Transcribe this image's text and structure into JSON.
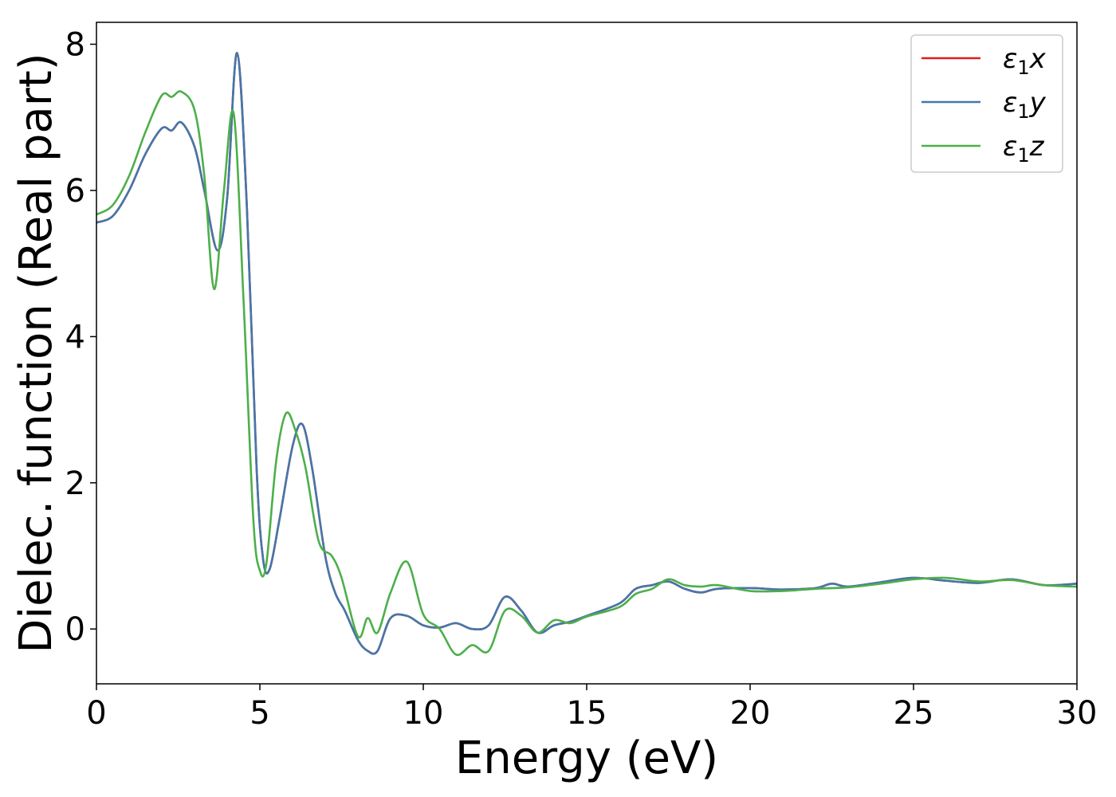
{
  "chart_data": {
    "type": "line",
    "title": "",
    "xlabel": "Energy (eV)",
    "ylabel": "Dielec. function (Real part)",
    "xlim": [
      0,
      30
    ],
    "ylim": [
      -0.75,
      8.3
    ],
    "xticks": [
      0,
      5,
      10,
      15,
      20,
      25,
      30
    ],
    "yticks": [
      0,
      2,
      4,
      6,
      8
    ],
    "grid": false,
    "legend_position": "top-right",
    "series": [
      {
        "name": "ε1x",
        "legend_symbol": "ε",
        "legend_sub": "1",
        "legend_var": "x",
        "color": "#e41a1c",
        "x": [
          0,
          0.5,
          1,
          1.5,
          2,
          2.3,
          2.6,
          3,
          3.3,
          3.7,
          4,
          4.3,
          4.6,
          4.9,
          5.1,
          5.3,
          5.6,
          6,
          6.3,
          6.6,
          7,
          7.3,
          7.6,
          8,
          8.3,
          8.6,
          9,
          9.5,
          10,
          10.5,
          11,
          11.5,
          12,
          12.5,
          13,
          13.5,
          14,
          14.5,
          15,
          16,
          16.5,
          17,
          17.5,
          18,
          18.5,
          19,
          20,
          21,
          22,
          22.5,
          23,
          24,
          25,
          26,
          27,
          28,
          29,
          30
        ],
        "values": [
          5.56,
          5.65,
          6.0,
          6.5,
          6.85,
          6.82,
          6.93,
          6.6,
          6.0,
          5.18,
          5.9,
          7.88,
          5.8,
          2.2,
          0.95,
          0.82,
          1.5,
          2.5,
          2.8,
          2.2,
          1.0,
          0.5,
          0.25,
          -0.15,
          -0.3,
          -0.3,
          0.15,
          0.18,
          0.05,
          0.02,
          0.08,
          0.0,
          0.05,
          0.44,
          0.25,
          -0.05,
          0.05,
          0.1,
          0.18,
          0.35,
          0.55,
          0.6,
          0.65,
          0.55,
          0.5,
          0.55,
          0.56,
          0.54,
          0.56,
          0.62,
          0.58,
          0.64,
          0.7,
          0.66,
          0.63,
          0.68,
          0.6,
          0.62
        ]
      },
      {
        "name": "ε1y",
        "legend_symbol": "ε",
        "legend_sub": "1",
        "legend_var": "y",
        "color": "#4477aa",
        "x": [
          0,
          0.5,
          1,
          1.5,
          2,
          2.3,
          2.6,
          3,
          3.3,
          3.7,
          4,
          4.3,
          4.6,
          4.9,
          5.1,
          5.3,
          5.6,
          6,
          6.3,
          6.6,
          7,
          7.3,
          7.6,
          8,
          8.3,
          8.6,
          9,
          9.5,
          10,
          10.5,
          11,
          11.5,
          12,
          12.5,
          13,
          13.5,
          14,
          14.5,
          15,
          16,
          16.5,
          17,
          17.5,
          18,
          18.5,
          19,
          20,
          21,
          22,
          22.5,
          23,
          24,
          25,
          26,
          27,
          28,
          29,
          30
        ],
        "values": [
          5.56,
          5.65,
          6.0,
          6.5,
          6.85,
          6.82,
          6.93,
          6.6,
          6.0,
          5.18,
          5.9,
          7.88,
          5.8,
          2.2,
          0.95,
          0.82,
          1.5,
          2.5,
          2.8,
          2.2,
          1.0,
          0.5,
          0.25,
          -0.15,
          -0.3,
          -0.3,
          0.15,
          0.18,
          0.05,
          0.02,
          0.08,
          0.0,
          0.05,
          0.44,
          0.25,
          -0.05,
          0.05,
          0.1,
          0.18,
          0.35,
          0.55,
          0.6,
          0.65,
          0.55,
          0.5,
          0.55,
          0.56,
          0.54,
          0.56,
          0.62,
          0.58,
          0.64,
          0.7,
          0.66,
          0.63,
          0.68,
          0.6,
          0.62
        ]
      },
      {
        "name": "ε1z",
        "legend_symbol": "ε",
        "legend_sub": "1",
        "legend_var": "z",
        "color": "#4daf4a",
        "x": [
          0,
          0.5,
          1,
          1.5,
          2,
          2.3,
          2.6,
          3,
          3.3,
          3.6,
          3.9,
          4.2,
          4.5,
          4.8,
          5.0,
          5.2,
          5.5,
          5.8,
          6.1,
          6.4,
          6.8,
          7.2,
          7.5,
          8.0,
          8.3,
          8.6,
          9.0,
          9.5,
          10.0,
          10.5,
          11.0,
          11.5,
          12.0,
          12.5,
          13.0,
          13.5,
          14.0,
          14.5,
          15,
          16,
          16.5,
          17,
          17.5,
          18,
          18.5,
          19,
          20,
          21,
          22,
          23,
          24,
          25,
          26,
          27,
          28,
          29,
          30
        ],
        "values": [
          5.67,
          5.8,
          6.2,
          6.8,
          7.3,
          7.28,
          7.35,
          7.1,
          6.2,
          4.65,
          6.0,
          7.05,
          4.5,
          1.5,
          0.8,
          0.9,
          2.3,
          2.95,
          2.7,
          2.2,
          1.2,
          1.0,
          0.7,
          -0.1,
          0.15,
          -0.05,
          0.5,
          0.92,
          0.2,
          0.0,
          -0.35,
          -0.22,
          -0.3,
          0.25,
          0.18,
          -0.05,
          0.12,
          0.08,
          0.17,
          0.3,
          0.48,
          0.55,
          0.68,
          0.6,
          0.58,
          0.6,
          0.52,
          0.52,
          0.55,
          0.57,
          0.62,
          0.68,
          0.7,
          0.65,
          0.67,
          0.6,
          0.58
        ]
      }
    ]
  }
}
